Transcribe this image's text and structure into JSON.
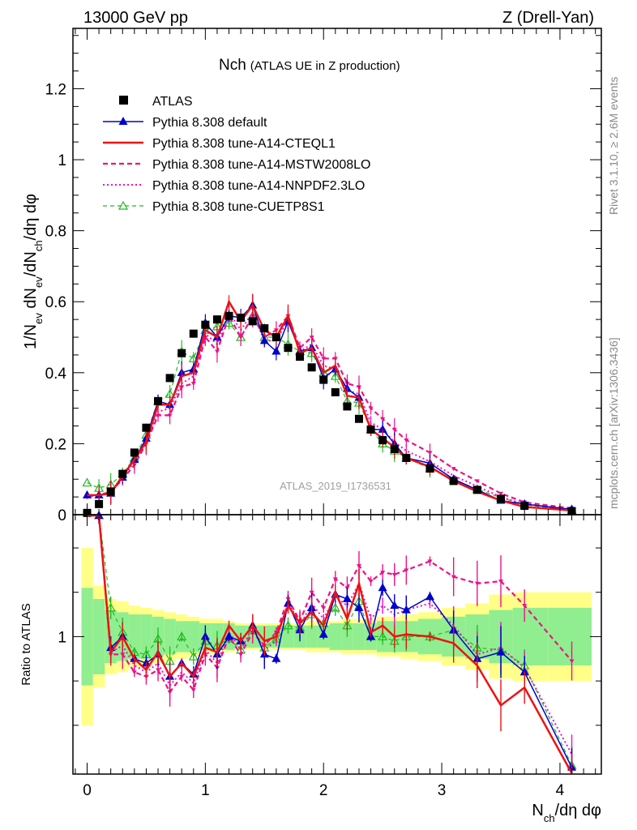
{
  "header": {
    "left": "13000 GeV pp",
    "right": "Z (Drell-Yan)"
  },
  "side_labels": {
    "rivet": "Rivet 3.1.10, ≥ 2.6M events",
    "mcplots": "mcplots.cern.ch [arXiv:1306.3436]"
  },
  "colors": {
    "data": "#000000",
    "default": "#0000cc",
    "cteql1": "#ee1111",
    "mstw": "#ee1188",
    "nnpdf": "#ee11cc",
    "cuetp8s1": "#22bb22",
    "band_inner": "#90ee90",
    "band_outer": "#ffff88"
  },
  "chart_data": [
    {
      "type": "line",
      "panel": "main",
      "title": "Nch",
      "subtitle": "(ATLAS UE in Z production)",
      "watermark": "ATLAS_2019_I1736531",
      "ylabel": "1/N_ev dN_ev/dN_ch/dη dφ",
      "xlabel": "N_ch/dη dφ",
      "xlim": [
        -0.12,
        4.35
      ],
      "ylim": [
        0,
        1.37
      ],
      "xticks": [
        "0",
        "1",
        "2",
        "3",
        "4"
      ],
      "yticks": [
        "0",
        "0.2",
        "0.4",
        "0.6",
        "0.8",
        "1",
        "1.2"
      ],
      "x": [
        0.0,
        0.1,
        0.2,
        0.3,
        0.4,
        0.5,
        0.6,
        0.7,
        0.8,
        0.9,
        1.0,
        1.1,
        1.2,
        1.3,
        1.4,
        1.5,
        1.6,
        1.7,
        1.8,
        1.9,
        2.0,
        2.1,
        2.2,
        2.3,
        2.4,
        2.5,
        2.6,
        2.7,
        2.9,
        3.1,
        3.3,
        3.5,
        3.7,
        4.1
      ],
      "legend_position": "top-left",
      "series": [
        {
          "name": "ATLAS",
          "key": "data",
          "style": "points",
          "values": [
            0.005,
            0.03,
            0.065,
            0.115,
            0.175,
            0.245,
            0.32,
            0.385,
            0.455,
            0.51,
            0.535,
            0.55,
            0.56,
            0.555,
            0.545,
            0.525,
            0.5,
            0.47,
            0.445,
            0.415,
            0.38,
            0.345,
            0.305,
            0.27,
            0.24,
            0.21,
            0.185,
            0.16,
            0.13,
            0.095,
            0.07,
            0.045,
            0.025,
            0.01
          ]
        },
        {
          "name": "Pythia 8.308 default",
          "key": "default",
          "style": "solid-triangle",
          "values": [
            0.055,
            0.055,
            0.06,
            0.105,
            0.155,
            0.215,
            0.32,
            0.31,
            0.4,
            0.41,
            0.54,
            0.5,
            0.56,
            0.555,
            0.59,
            0.49,
            0.46,
            0.545,
            0.46,
            0.47,
            0.385,
            0.41,
            0.355,
            0.33,
            0.24,
            0.24,
            0.2,
            0.16,
            0.145,
            0.1,
            0.07,
            0.04,
            0.03,
            0.015
          ]
        },
        {
          "name": "Pythia 8.308 tune-A14-CTEQL1",
          "key": "cteql1",
          "style": "solid-thick",
          "values": [
            0.055,
            0.055,
            0.06,
            0.11,
            0.155,
            0.205,
            0.31,
            0.31,
            0.39,
            0.4,
            0.52,
            0.5,
            0.6,
            0.545,
            0.59,
            0.52,
            0.5,
            0.56,
            0.455,
            0.47,
            0.4,
            0.42,
            0.335,
            0.33,
            0.24,
            0.215,
            0.19,
            0.16,
            0.135,
            0.095,
            0.065,
            0.04,
            0.022,
            0.012
          ]
        },
        {
          "name": "Pythia 8.308 tune-A14-MSTW2008LO",
          "key": "mstw",
          "style": "dashed",
          "values": [
            0.05,
            0.055,
            0.065,
            0.1,
            0.14,
            0.2,
            0.28,
            0.28,
            0.36,
            0.37,
            0.5,
            0.46,
            0.56,
            0.5,
            0.56,
            0.5,
            0.52,
            0.56,
            0.47,
            0.5,
            0.44,
            0.44,
            0.37,
            0.36,
            0.3,
            0.27,
            0.24,
            0.21,
            0.175,
            0.13,
            0.095,
            0.06,
            0.035,
            0.018
          ]
        },
        {
          "name": "Pythia 8.308 tune-A14-NNPDF2.3LO",
          "key": "nnpdf",
          "style": "dotted",
          "values": [
            0.05,
            0.055,
            0.062,
            0.105,
            0.15,
            0.2,
            0.29,
            0.3,
            0.37,
            0.39,
            0.51,
            0.48,
            0.57,
            0.52,
            0.57,
            0.49,
            0.49,
            0.55,
            0.46,
            0.48,
            0.42,
            0.41,
            0.35,
            0.34,
            0.26,
            0.24,
            0.205,
            0.18,
            0.15,
            0.11,
            0.08,
            0.05,
            0.03,
            0.015
          ]
        },
        {
          "name": "Pythia 8.308 tune-CUETP8S1",
          "key": "cuetp8s1",
          "style": "dashed-open-triangle",
          "values": [
            0.09,
            0.075,
            0.085,
            0.115,
            0.16,
            0.225,
            0.32,
            0.34,
            0.46,
            0.44,
            0.52,
            0.53,
            0.54,
            0.5,
            0.56,
            0.5,
            0.5,
            0.48,
            0.46,
            0.455,
            0.4,
            0.39,
            0.32,
            0.315,
            0.24,
            0.2,
            0.18,
            0.16,
            0.13,
            0.1,
            0.072,
            0.048,
            0.028,
            0.012
          ]
        }
      ]
    },
    {
      "type": "line",
      "panel": "ratio",
      "ylabel": "Ratio to ATLAS",
      "xlim": [
        -0.12,
        4.35
      ],
      "ylim": [
        0.38,
        1.55
      ],
      "yticks": [
        "1"
      ],
      "x": [
        0.0,
        0.1,
        0.2,
        0.3,
        0.4,
        0.5,
        0.6,
        0.7,
        0.8,
        0.9,
        1.0,
        1.1,
        1.2,
        1.3,
        1.4,
        1.5,
        1.6,
        1.7,
        1.8,
        1.9,
        2.0,
        2.1,
        2.2,
        2.3,
        2.4,
        2.5,
        2.6,
        2.7,
        2.9,
        3.1,
        3.3,
        3.5,
        3.7,
        4.1
      ],
      "band_inner": [
        0.22,
        0.17,
        0.12,
        0.11,
        0.1,
        0.1,
        0.09,
        0.08,
        0.07,
        0.07,
        0.06,
        0.06,
        0.06,
        0.05,
        0.05,
        0.05,
        0.05,
        0.05,
        0.05,
        0.05,
        0.05,
        0.06,
        0.06,
        0.06,
        0.06,
        0.07,
        0.07,
        0.07,
        0.08,
        0.09,
        0.1,
        0.12,
        0.13,
        0.13
      ],
      "band_outer": [
        0.4,
        0.23,
        0.17,
        0.16,
        0.14,
        0.13,
        0.12,
        0.11,
        0.1,
        0.09,
        0.08,
        0.08,
        0.07,
        0.06,
        0.06,
        0.06,
        0.06,
        0.06,
        0.06,
        0.07,
        0.07,
        0.07,
        0.08,
        0.08,
        0.08,
        0.09,
        0.09,
        0.1,
        0.11,
        0.13,
        0.15,
        0.19,
        0.2,
        0.2
      ],
      "series": [
        {
          "name": "Pythia 8.308 default",
          "key": "default",
          "values": [
            null,
            1.68,
            0.95,
            1.0,
            0.9,
            0.88,
            0.92,
            0.82,
            0.88,
            0.83,
            1.0,
            0.92,
            1.0,
            0.98,
            1.05,
            0.92,
            0.9,
            1.15,
            1.03,
            1.13,
            1.01,
            1.19,
            1.17,
            1.13,
            1.0,
            1.22,
            1.14,
            1.12,
            1.18,
            1.03,
            0.9,
            0.93,
            0.84,
            0.41
          ]
        },
        {
          "name": "Pythia 8.308 tune-A14-CTEQL1",
          "key": "cteql1",
          "values": [
            null,
            1.6,
            0.93,
            1.0,
            0.9,
            0.85,
            0.93,
            0.82,
            0.88,
            0.82,
            0.95,
            0.93,
            1.05,
            0.98,
            1.05,
            0.98,
            1.0,
            1.14,
            1.06,
            1.11,
            1.05,
            1.2,
            1.08,
            1.24,
            1.02,
            1.05,
            1.0,
            1.01,
            1.0,
            0.97,
            0.87,
            0.69,
            0.77,
            0.36
          ]
        },
        {
          "name": "Pythia 8.308 tune-A14-MSTW2008LO",
          "key": "mstw",
          "values": [
            null,
            1.55,
            0.92,
            0.92,
            0.84,
            0.82,
            0.85,
            0.75,
            0.82,
            0.76,
            0.92,
            0.86,
            1.0,
            0.92,
            1.02,
            0.96,
            1.02,
            1.17,
            1.07,
            1.2,
            1.13,
            1.26,
            1.22,
            1.32,
            1.25,
            1.29,
            1.28,
            1.3,
            1.34,
            1.27,
            1.24,
            1.25,
            1.14,
            0.89
          ]
        },
        {
          "name": "Pythia 8.308 tune-A14-NNPDF2.3LO",
          "key": "nnpdf",
          "values": [
            null,
            1.58,
            0.93,
            0.96,
            0.87,
            0.84,
            0.88,
            0.78,
            0.84,
            0.79,
            0.94,
            0.88,
            1.02,
            0.94,
            1.04,
            0.94,
            0.98,
            1.16,
            1.05,
            1.15,
            1.08,
            1.18,
            1.14,
            1.24,
            1.08,
            1.14,
            1.1,
            1.12,
            1.15,
            1.05,
            0.92,
            0.95,
            0.86,
            0.47
          ]
        },
        {
          "name": "Pythia 8.308 tune-CUETP8S1",
          "key": "cuetp8s1",
          "values": [
            null,
            1.72,
            1.13,
            1.02,
            0.93,
            0.92,
            0.99,
            0.89,
            1.0,
            0.91,
            0.98,
            0.96,
            0.99,
            0.94,
            1.03,
            0.95,
            0.99,
            1.05,
            1.04,
            1.1,
            1.06,
            1.13,
            1.05,
            1.16,
            1.0,
            1.0,
            0.98,
            1.0,
            1.0,
            1.03,
            0.95,
            0.94,
            0.87,
            0.42
          ]
        }
      ]
    }
  ]
}
